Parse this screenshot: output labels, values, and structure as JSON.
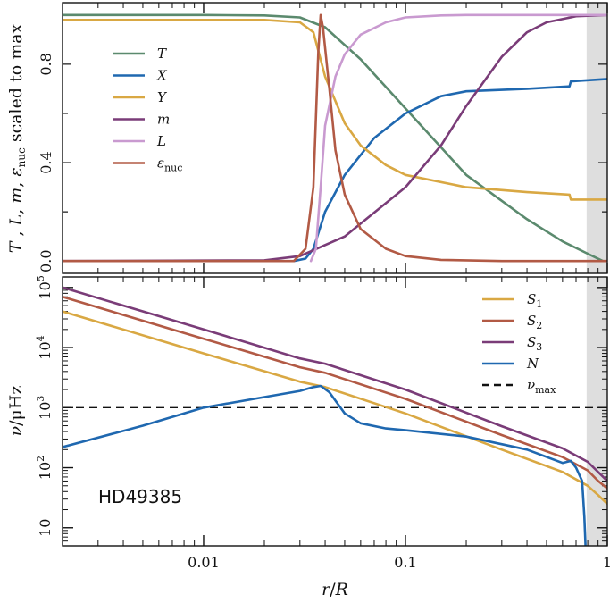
{
  "chart_data": [
    {
      "type": "line",
      "panel": "top",
      "xscale": "log",
      "xlim": [
        0.002,
        1
      ],
      "ylim": [
        -0.05,
        1.05
      ],
      "ylabel": "T , L, m, ε_nuc scaled to max",
      "ylabel_parts": [
        "T",
        " , ",
        "L",
        ", ",
        "m",
        ", ",
        "ε",
        "nuc",
        " scaled to max"
      ],
      "yticks": [
        0.0,
        0.4,
        0.8
      ],
      "ytick_labels": [
        "0.0",
        "0.4",
        "0.8"
      ],
      "shaded_region": [
        0.79,
        1.0
      ],
      "legend_position": "upper-left",
      "series": [
        {
          "name": "T",
          "label": "T",
          "color": "#5b8a6e",
          "x": [
            0.002,
            0.01,
            0.02,
            0.03,
            0.04,
            0.06,
            0.1,
            0.2,
            0.4,
            0.6,
            0.8,
            0.95
          ],
          "y": [
            1.0,
            1.0,
            0.998,
            0.99,
            0.95,
            0.82,
            0.62,
            0.35,
            0.17,
            0.08,
            0.03,
            0.0
          ]
        },
        {
          "name": "X",
          "label": "X",
          "color": "#1f68b0",
          "x": [
            0.028,
            0.032,
            0.035,
            0.04,
            0.05,
            0.07,
            0.1,
            0.15,
            0.2,
            0.4,
            0.65,
            0.66,
            1.0
          ],
          "y": [
            0.0,
            0.01,
            0.05,
            0.2,
            0.35,
            0.5,
            0.6,
            0.67,
            0.69,
            0.7,
            0.71,
            0.73,
            0.74
          ]
        },
        {
          "name": "Y",
          "label": "Y",
          "color": "#d9a843",
          "x": [
            0.002,
            0.02,
            0.03,
            0.035,
            0.04,
            0.05,
            0.06,
            0.08,
            0.1,
            0.2,
            0.4,
            0.65,
            0.66,
            1.0
          ],
          "y": [
            0.98,
            0.98,
            0.97,
            0.93,
            0.75,
            0.56,
            0.47,
            0.39,
            0.35,
            0.3,
            0.28,
            0.27,
            0.25,
            0.25
          ]
        },
        {
          "name": "m",
          "label": "m",
          "color": "#7a3c78",
          "x": [
            0.002,
            0.02,
            0.03,
            0.05,
            0.1,
            0.15,
            0.2,
            0.3,
            0.4,
            0.5,
            0.7,
            1.0
          ],
          "y": [
            0.0,
            0.003,
            0.02,
            0.1,
            0.3,
            0.47,
            0.63,
            0.83,
            0.93,
            0.97,
            0.995,
            1.0
          ]
        },
        {
          "name": "L",
          "label": "L",
          "color": "#c99ad0",
          "x": [
            0.034,
            0.036,
            0.038,
            0.04,
            0.045,
            0.05,
            0.06,
            0.08,
            0.1,
            0.15,
            0.2,
            1.0
          ],
          "y": [
            0.0,
            0.05,
            0.3,
            0.55,
            0.75,
            0.84,
            0.92,
            0.97,
            0.99,
            0.998,
            1.0,
            1.0
          ]
        },
        {
          "name": "eps_nuc",
          "label": "ε_nuc",
          "color": "#b25a45",
          "x": [
            0.002,
            0.028,
            0.032,
            0.035,
            0.037,
            0.038,
            0.039,
            0.042,
            0.045,
            0.05,
            0.06,
            0.08,
            0.1,
            0.15,
            0.3,
            1.0
          ],
          "y": [
            0.0,
            0.0,
            0.05,
            0.3,
            0.85,
            1.0,
            0.95,
            0.7,
            0.45,
            0.27,
            0.13,
            0.05,
            0.02,
            0.005,
            0.0,
            0.0
          ]
        }
      ],
      "legend": [
        {
          "label": "T",
          "sub": "",
          "color": "#5b8a6e"
        },
        {
          "label": "X",
          "sub": "",
          "color": "#1f68b0"
        },
        {
          "label": "Y",
          "sub": "",
          "color": "#d9a843"
        },
        {
          "label": "m",
          "sub": "",
          "color": "#7a3c78"
        },
        {
          "label": "L",
          "sub": "",
          "color": "#c99ad0"
        },
        {
          "label": "ε",
          "sub": "nuc",
          "color": "#b25a45"
        }
      ]
    },
    {
      "type": "line",
      "panel": "bottom",
      "xscale": "log",
      "yscale": "log",
      "xlim": [
        0.002,
        1
      ],
      "ylim": [
        5,
        150000
      ],
      "xlabel": "r/R",
      "xlabel_parts": [
        "r",
        "/",
        "R"
      ],
      "ylabel": "ν/μHz",
      "ylabel_parts": [
        "ν",
        "/μHz"
      ],
      "yticks": [
        10,
        100,
        1000,
        10000,
        100000
      ],
      "ytick_labels": [
        {
          "base": "10",
          "exp": ""
        },
        {
          "base": "10",
          "exp": "2"
        },
        {
          "base": "10",
          "exp": "3"
        },
        {
          "base": "10",
          "exp": "4"
        },
        {
          "base": "10",
          "exp": "5"
        }
      ],
      "xticks": [
        0.01,
        0.1,
        1
      ],
      "xtick_labels": [
        "0.01",
        "0.1",
        "1"
      ],
      "shaded_region": [
        0.79,
        1.0
      ],
      "nu_max": 1000,
      "annotation": "HD49385",
      "legend_position": "upper-right",
      "series": [
        {
          "name": "S1",
          "color": "#d9a843",
          "x": [
            0.002,
            0.01,
            0.03,
            0.04,
            0.1,
            0.3,
            0.6,
            0.8,
            0.9,
            1.0
          ],
          "y": [
            40000,
            8000,
            2700,
            2200,
            800,
            200,
            85,
            50,
            35,
            25
          ]
        },
        {
          "name": "S2",
          "color": "#b25a45",
          "x": [
            0.002,
            0.01,
            0.03,
            0.04,
            0.1,
            0.3,
            0.6,
            0.8,
            0.9,
            1.0
          ],
          "y": [
            70000,
            14000,
            4700,
            3800,
            1400,
            350,
            150,
            90,
            60,
            45
          ]
        },
        {
          "name": "S3",
          "color": "#7a3c78",
          "x": [
            0.002,
            0.01,
            0.03,
            0.04,
            0.1,
            0.3,
            0.6,
            0.8,
            0.9,
            1.0
          ],
          "y": [
            100000,
            20000,
            6600,
            5400,
            2000,
            490,
            210,
            125,
            85,
            60
          ]
        },
        {
          "name": "N",
          "color": "#1f68b0",
          "x": [
            0.002,
            0.005,
            0.01,
            0.02,
            0.03,
            0.035,
            0.038,
            0.042,
            0.05,
            0.06,
            0.08,
            0.1,
            0.2,
            0.4,
            0.6,
            0.66,
            0.7,
            0.75,
            0.77,
            0.78
          ],
          "y": [
            220,
            500,
            1000,
            1500,
            1900,
            2200,
            2300,
            1800,
            800,
            550,
            450,
            420,
            330,
            200,
            120,
            130,
            100,
            60,
            15,
            5
          ]
        }
      ],
      "legend": [
        {
          "label": "S",
          "sub": "1",
          "color": "#d9a843",
          "dashed": false
        },
        {
          "label": "S",
          "sub": "2",
          "color": "#b25a45",
          "dashed": false
        },
        {
          "label": "S",
          "sub": "3",
          "color": "#7a3c78",
          "dashed": false
        },
        {
          "label": "N",
          "sub": "",
          "color": "#1f68b0",
          "dashed": false
        },
        {
          "label": "ν",
          "sub": "max",
          "color": "#111111",
          "dashed": true
        }
      ]
    }
  ]
}
